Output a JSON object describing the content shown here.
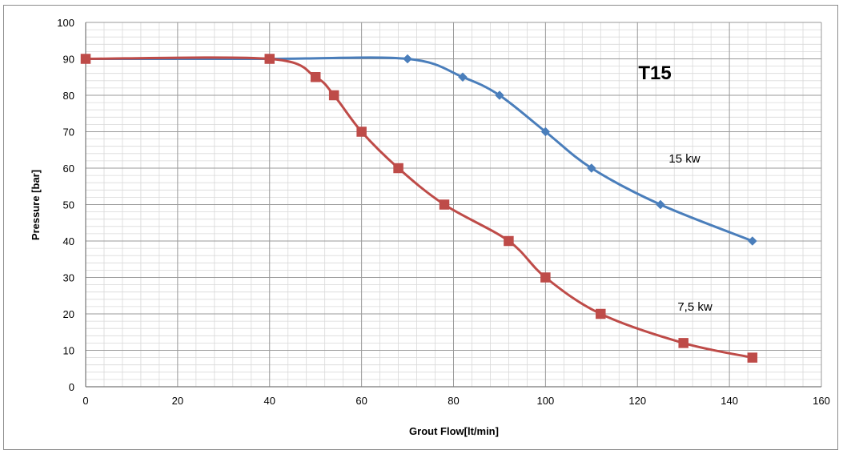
{
  "chart_data": {
    "type": "line",
    "title": "T15",
    "xlabel": "Grout Flow[lt/min]",
    "ylabel": "Pressure [bar]",
    "xlim": [
      0,
      160
    ],
    "ylim": [
      0,
      100
    ],
    "x_ticks": [
      0,
      20,
      40,
      60,
      80,
      100,
      120,
      140,
      160
    ],
    "y_ticks": [
      0,
      10,
      20,
      30,
      40,
      50,
      60,
      70,
      80,
      90,
      100
    ],
    "grid": true,
    "legend": "none",
    "series": [
      {
        "label": "15 kw",
        "color": "#4a7ebb",
        "marker": "diamond",
        "x": [
          0,
          40,
          70,
          82,
          90,
          100,
          110,
          125,
          145
        ],
        "y": [
          90,
          90,
          90,
          85,
          80,
          70,
          60,
          50,
          40
        ]
      },
      {
        "label": "7,5 kw",
        "color": "#be4b48",
        "marker": "square",
        "x": [
          0,
          40,
          50,
          54,
          60,
          68,
          78,
          92,
          100,
          112,
          130,
          145
        ],
        "y": [
          90,
          90,
          85,
          80,
          70,
          60,
          50,
          40,
          30,
          20,
          12,
          8
        ]
      }
    ]
  }
}
